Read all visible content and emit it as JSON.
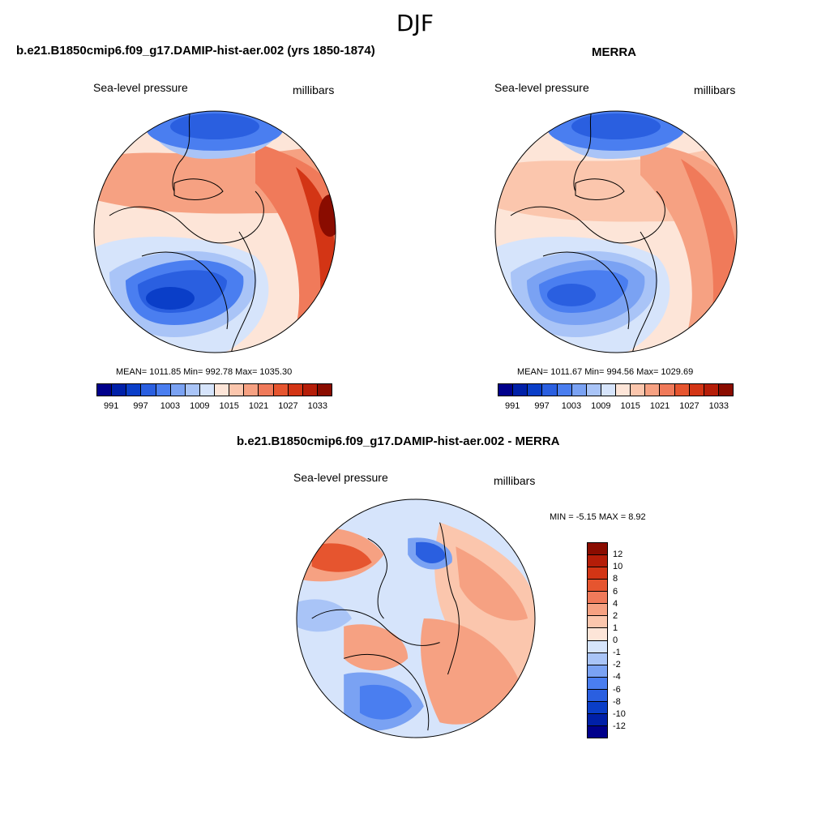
{
  "title": "DJF",
  "panels": [
    {
      "id": "model",
      "title": "b.e21.B1850cmip6.f09_g17.DAMIP-hist-aer.002 (yrs 1850-1874)",
      "variable": "Sea-level pressure",
      "units": "millibars",
      "stats_text": "MEAN= 1011.85  Min= 992.78  Max= 1035.30"
    },
    {
      "id": "obs",
      "title": "MERRA",
      "variable": "Sea-level pressure",
      "units": "millibars",
      "stats_text": "MEAN= 1011.67  Min= 994.56  Max= 1029.69"
    },
    {
      "id": "diff",
      "title": "b.e21.B1850cmip6.f09_g17.DAMIP-hist-aer.002 - MERRA",
      "variable": "Sea-level pressure",
      "units": "millibars",
      "stats_text": "MIN =  -5.15 MAX =   8.92"
    }
  ],
  "abs_colorbar": {
    "colors": [
      "#00008b",
      "#0020a8",
      "#0a3ec8",
      "#2a5fe0",
      "#4a7ef0",
      "#7aa2f3",
      "#a9c4f7",
      "#d6e4fb",
      "#fde5d8",
      "#fbc6ad",
      "#f6a182",
      "#f07a5a",
      "#e6552f",
      "#d33515",
      "#b51d08",
      "#8a0c00"
    ],
    "tick_labels": [
      "991",
      "997",
      "1003",
      "1009",
      "1015",
      "1021",
      "1027",
      "1033"
    ]
  },
  "diff_colorbar": {
    "colors": [
      "#8a0c00",
      "#b51d08",
      "#d33515",
      "#e6552f",
      "#f07a5a",
      "#f6a182",
      "#fbc6ad",
      "#fde5d8",
      "#d6e4fb",
      "#a9c4f7",
      "#7aa2f3",
      "#4a7ef0",
      "#2a5fe0",
      "#0a3ec8",
      "#0020a8",
      "#00008b"
    ],
    "tick_labels": [
      "12",
      "10",
      "8",
      "6",
      "4",
      "2",
      "1",
      "0",
      "-1",
      "-2",
      "-4",
      "-6",
      "-8",
      "-10",
      "-12"
    ]
  },
  "map_colors": {
    "deep_blue": "#1a3fc6",
    "mid_blue": "#4a7ef0",
    "light_blue": "#a9c4f7",
    "pale_blue": "#d6e4fb",
    "pale_red": "#fde5d8",
    "light_red": "#f6a182",
    "mid_red": "#f07a5a",
    "deep_red": "#d33515",
    "dark_red": "#8a0c00"
  }
}
